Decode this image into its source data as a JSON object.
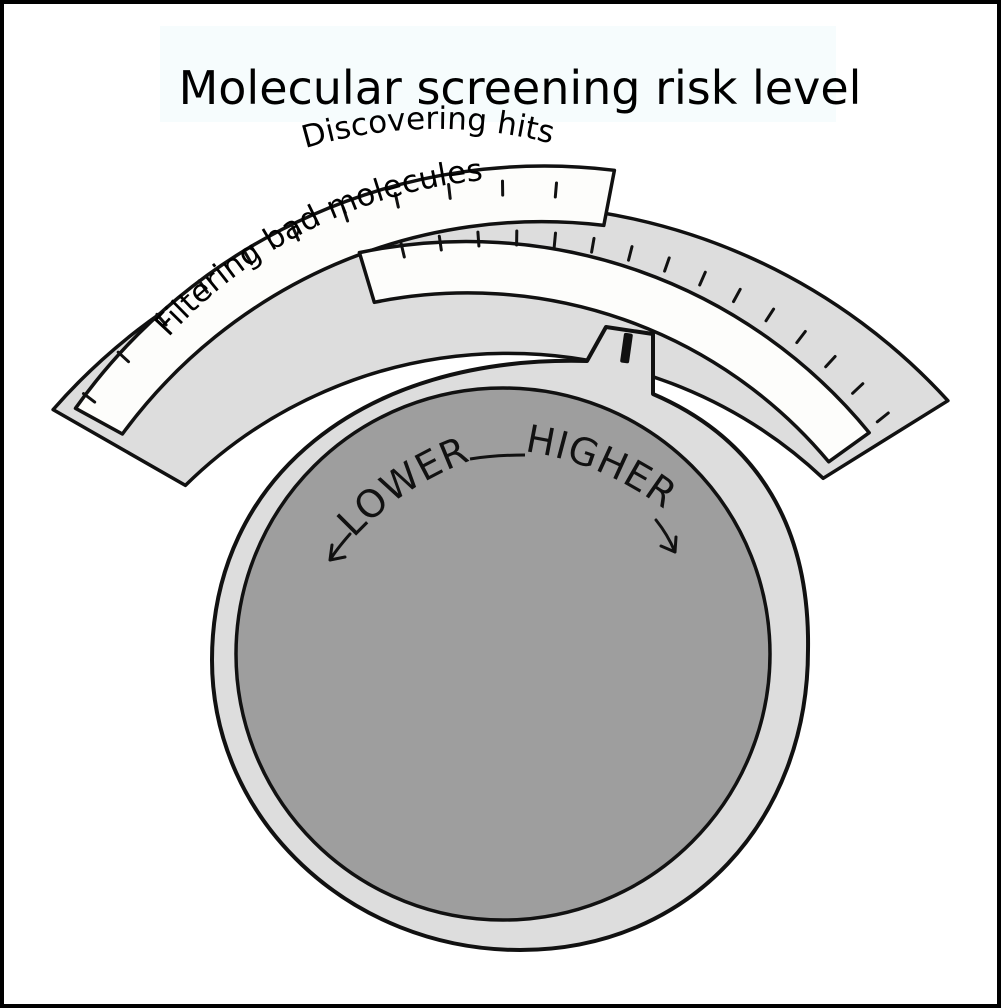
{
  "title": "Molecular screening risk level",
  "outer_scale": {
    "label": "Filtering bad molecules"
  },
  "inner_scale": {
    "label": "Discovering hits"
  },
  "knob": {
    "left_label": "LOWER",
    "right_label": "HIGHER"
  },
  "colors": {
    "background": "#ffffff",
    "frame": "#000000",
    "bezel": "#dddddd",
    "scale_face": "#fdfdfb",
    "knob_face": "#9e9e9e",
    "ink": "#111111",
    "title_band": "#f6fcfd"
  }
}
